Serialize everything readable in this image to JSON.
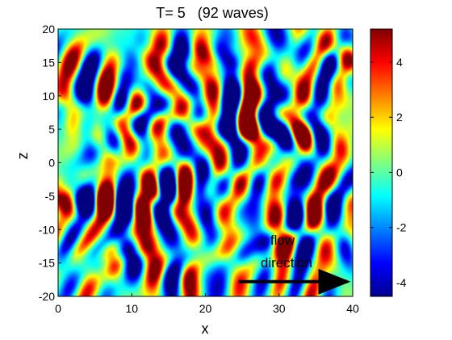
{
  "chart_data": {
    "type": "heatmap",
    "title": "T= 5   (92 waves)",
    "xlabel": "x",
    "ylabel": "z",
    "xlim": [
      0,
      40
    ],
    "ylim": [
      -20,
      20
    ],
    "x_ticks": [
      "0",
      "10",
      "20",
      "30",
      "40"
    ],
    "y_ticks": [
      "20",
      "15",
      "10",
      "5",
      "0",
      "-5",
      "-10",
      "-15",
      "-20"
    ],
    "colorbar": {
      "range": [
        -4.5,
        5.2
      ],
      "ticks": [
        "4",
        "2",
        "0",
        "-2",
        "-4"
      ],
      "colormap": "jet"
    },
    "annotation": {
      "line1": "flow",
      "line2": "direction",
      "arrow_from": [
        24.5,
        -17.8
      ],
      "arrow_to": [
        39.5,
        -17.8
      ]
    },
    "wave_count": 92
  }
}
